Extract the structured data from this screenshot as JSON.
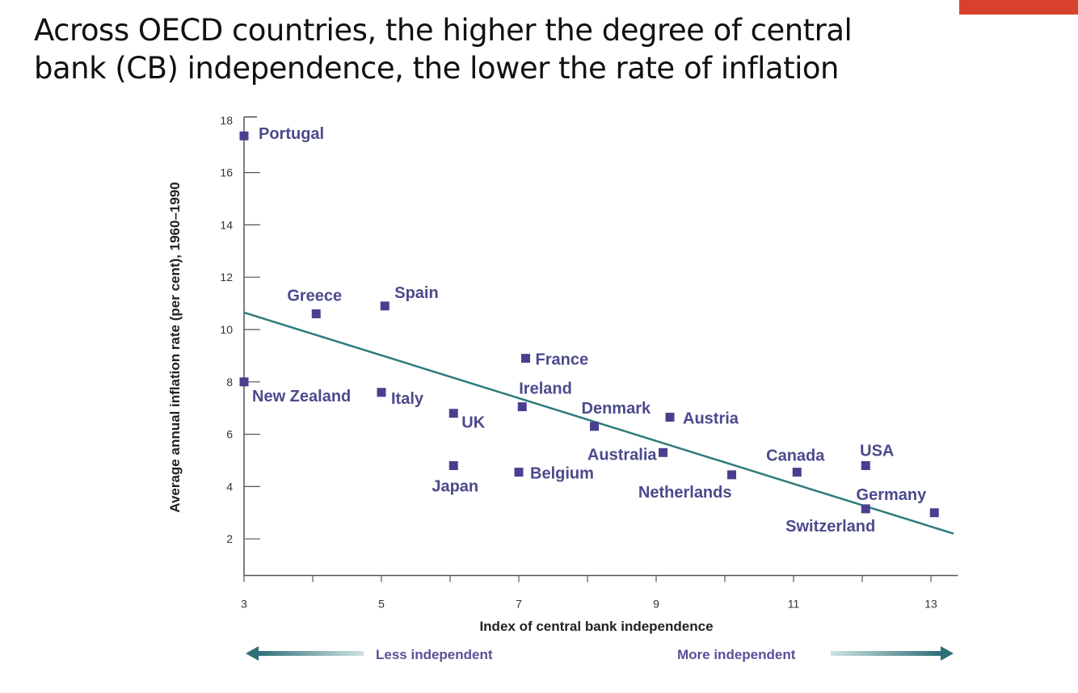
{
  "slide": {
    "title_line1": "Across OECD countries, the higher the degree of central",
    "title_line2": "bank (CB) independence, the lower the rate of inflation",
    "accent_color": "#d9412f"
  },
  "chart_data": {
    "type": "scatter",
    "title": "",
    "xlabel": "Index of central bank independence",
    "ylabel": "Average annual inflation rate (per cent), 1960–1990",
    "xlim": [
      3,
      13.3
    ],
    "ylim": [
      0.6,
      18
    ],
    "x_ticks": [
      3,
      4,
      5,
      6,
      7,
      8,
      9,
      10,
      11,
      12,
      13
    ],
    "x_tick_labels": [
      "3",
      "5",
      "7",
      "9",
      "11",
      "13"
    ],
    "y_ticks": [
      2,
      4,
      6,
      8,
      10,
      12,
      14,
      16,
      18
    ],
    "y_tick_labels": [
      "2",
      "4",
      "6",
      "8",
      "10",
      "12",
      "14",
      "16",
      "18"
    ],
    "direction_labels": {
      "left": "Less independent",
      "right": "More independent"
    },
    "marker_color": "#4a3f8f",
    "trend_color": "#2f7b7b",
    "points": [
      {
        "label": "Portugal",
        "x": 3.0,
        "y": 17.4
      },
      {
        "label": "Greece",
        "x": 4.05,
        "y": 10.6
      },
      {
        "label": "Spain",
        "x": 5.05,
        "y": 10.9
      },
      {
        "label": "New Zealand",
        "x": 3.0,
        "y": 8.0
      },
      {
        "label": "Italy",
        "x": 5.0,
        "y": 7.6
      },
      {
        "label": "UK",
        "x": 6.05,
        "y": 6.8
      },
      {
        "label": "Japan",
        "x": 6.05,
        "y": 4.8
      },
      {
        "label": "France",
        "x": 7.1,
        "y": 8.9
      },
      {
        "label": "Ireland",
        "x": 7.05,
        "y": 7.05
      },
      {
        "label": "Belgium",
        "x": 7.0,
        "y": 4.55
      },
      {
        "label": "Denmark",
        "x": 8.1,
        "y": 6.3
      },
      {
        "label": "Austria",
        "x": 9.2,
        "y": 6.65
      },
      {
        "label": "Australia",
        "x": 9.1,
        "y": 5.3
      },
      {
        "label": "Netherlands",
        "x": 10.1,
        "y": 4.45
      },
      {
        "label": "Canada",
        "x": 11.05,
        "y": 4.55
      },
      {
        "label": "USA",
        "x": 12.05,
        "y": 4.8
      },
      {
        "label": "Switzerland",
        "x": 12.05,
        "y": 3.15
      },
      {
        "label": "Germany",
        "x": 13.05,
        "y": 3.0
      }
    ],
    "trend_line": {
      "x": [
        3,
        13.33
      ],
      "y": [
        10.65,
        2.2
      ]
    },
    "grid": false,
    "legend": "none"
  }
}
